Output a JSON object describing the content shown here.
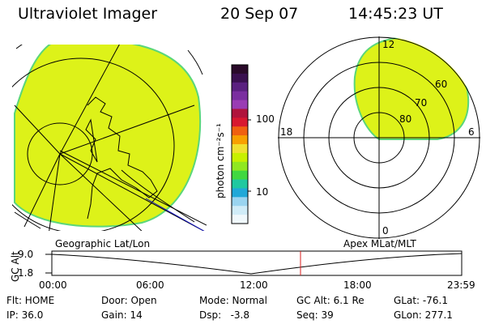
{
  "header": {
    "instrument": "Ultraviolet Imager",
    "date": "20 Sep 07",
    "time": "14:45:23 UT"
  },
  "panels": {
    "left_caption": "Geographic Lat/Lon",
    "right_caption": "Apex MLat/MLT"
  },
  "colorbar": {
    "label": "photon cm⁻²s⁻¹",
    "ticks": [
      "100",
      "10"
    ],
    "colors": [
      "#2a0a2a",
      "#3a1050",
      "#5a2080",
      "#7a2ea0",
      "#9a3cb4",
      "#b0143c",
      "#d81830",
      "#f06010",
      "#f8a000",
      "#f0e030",
      "#c8f000",
      "#90e820",
      "#40d840",
      "#20c8a0",
      "#20a8d8",
      "#9ad4f0",
      "#d0ecf8",
      "#f0f8fc"
    ]
  },
  "polar": {
    "lat_labels": [
      "80",
      "70",
      "60"
    ],
    "mlt_labels": {
      "top": "12",
      "right": "6",
      "left": "18",
      "bottom": "0"
    }
  },
  "timeline": {
    "y_label": "GC Alt",
    "y_ticks": [
      "9.0",
      "1.8"
    ],
    "x_ticks": [
      "00:00",
      "06:00",
      "12:00",
      "18:00",
      "23:59"
    ],
    "marker_time": "14:45"
  },
  "status": {
    "row1": [
      "Flt: HOME",
      "Door: Open",
      "Mode: Normal",
      "GC Alt: 6.1 Re",
      "GLat: -76.1"
    ],
    "row2": [
      "IP: 36.0",
      "Gain: 14",
      "Dsp:   -3.8",
      "Seq: 39",
      "GLon: 277.1"
    ]
  },
  "colors": {
    "fill": "#ddf219",
    "fill_edge": "#5ad67a",
    "marker": "#d81e1e",
    "track": "#1010c0"
  }
}
